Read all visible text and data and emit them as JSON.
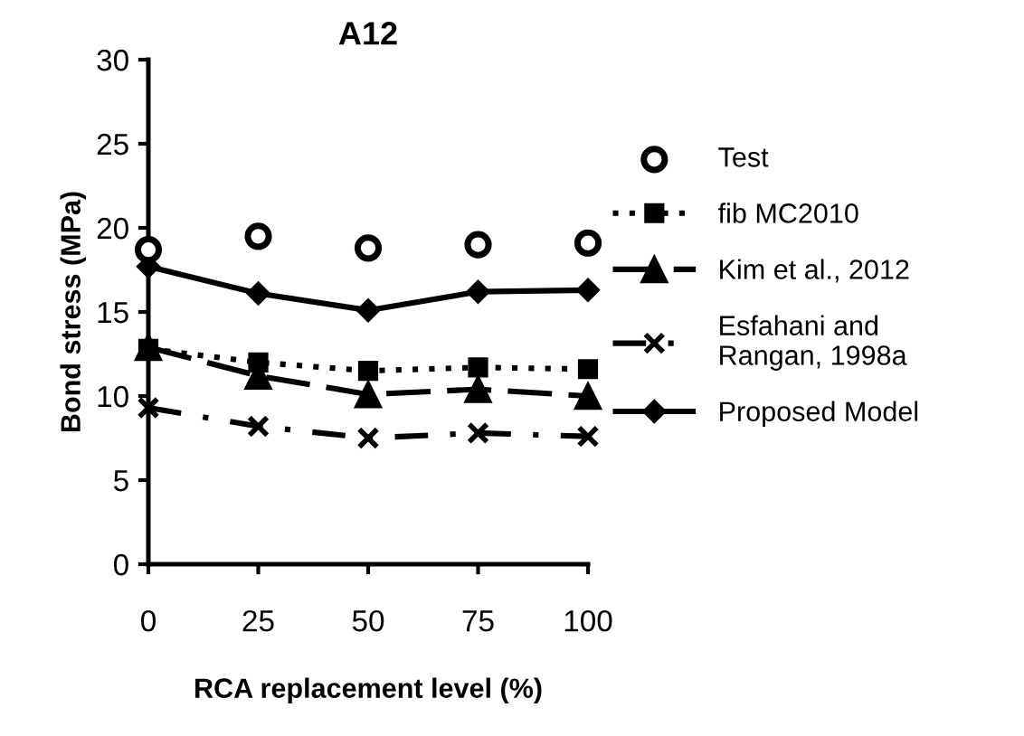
{
  "chart_data": {
    "type": "line",
    "title": "A12",
    "xlabel": "RCA replacement level (%)",
    "ylabel": "Bond stress (MPa)",
    "x": [
      0,
      25,
      50,
      75,
      100
    ],
    "xlim": [
      0,
      100
    ],
    "xticks": [
      0,
      25,
      50,
      75,
      100
    ],
    "ylim": [
      0,
      30
    ],
    "yticks": [
      0,
      5,
      10,
      15,
      20,
      25,
      30
    ],
    "grid": false,
    "legend": "right",
    "series": [
      {
        "name": "Test",
        "type": "scatter",
        "color": "#000000",
        "marker": "circle",
        "values": [
          18.7,
          19.5,
          18.8,
          19.0,
          19.1
        ]
      },
      {
        "name": "fib MC2010",
        "color": "#000000",
        "marker": "square",
        "line_style": "dotted",
        "values": [
          12.8,
          12.0,
          11.5,
          11.7,
          11.6
        ]
      },
      {
        "name": "Kim et al., 2012",
        "color": "#000000",
        "marker": "triangle",
        "line_style": "dashed",
        "values": [
          12.9,
          11.2,
          10.1,
          10.4,
          10.0
        ]
      },
      {
        "name": "Esfahani and\nRangan, 1998a",
        "color": "#000000",
        "marker": "cross",
        "line_style": "dashdot",
        "values": [
          9.3,
          8.2,
          7.5,
          7.8,
          7.6
        ]
      },
      {
        "name": "Proposed Model",
        "color": "#000000",
        "marker": "diamond",
        "line_style": "solid",
        "values": [
          17.7,
          16.1,
          15.1,
          16.2,
          16.3
        ]
      }
    ]
  }
}
